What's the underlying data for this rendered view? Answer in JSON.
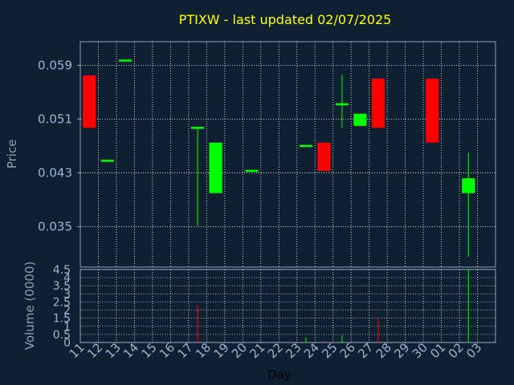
{
  "colors": {
    "background": "#0f2032",
    "title": "#ffff00",
    "axis_text": "#8aa0c0",
    "tick_text": "#9bb4d8",
    "xlabel": "#000000",
    "grid": "#ffffff",
    "frame": "#8aa0c0",
    "up": "#00ff00",
    "down": "#ff0000"
  },
  "chart_data": [
    {
      "type": "candlestick",
      "title": "PTIXW - last updated 02/07/2025",
      "ylabel": "Price",
      "ylim": [
        0.029,
        0.0625
      ],
      "yticks": [
        "0.059",
        "0.051",
        "0.043",
        "0.035"
      ],
      "ytick_values": [
        0.059,
        0.051,
        0.043,
        0.035
      ],
      "grid": true,
      "up_color": "#00ff00",
      "down_color": "#ff0000",
      "categories": [
        "11",
        "12",
        "13",
        "14",
        "15",
        "16",
        "17",
        "18",
        "19",
        "20",
        "21",
        "22",
        "23",
        "24",
        "25",
        "26",
        "27",
        "28",
        "29",
        "30",
        "01",
        "02",
        "03"
      ],
      "candles": [
        {
          "day": "11",
          "open": 0.0575,
          "high": 0.0575,
          "low": 0.0497,
          "close": 0.0497
        },
        {
          "day": "12",
          "open": 0.0448,
          "high": 0.0448,
          "low": 0.0448,
          "close": 0.0448
        },
        {
          "day": "13",
          "open": 0.0597,
          "high": 0.0597,
          "low": 0.0597,
          "close": 0.0597
        },
        {
          "day": "17",
          "open": 0.0497,
          "high": 0.0497,
          "low": 0.0352,
          "close": 0.0497
        },
        {
          "day": "18",
          "open": 0.04,
          "high": 0.0475,
          "low": 0.04,
          "close": 0.0475
        },
        {
          "day": "20",
          "open": 0.0433,
          "high": 0.0433,
          "low": 0.0433,
          "close": 0.0433
        },
        {
          "day": "23",
          "open": 0.047,
          "high": 0.047,
          "low": 0.047,
          "close": 0.047
        },
        {
          "day": "24",
          "open": 0.0475,
          "high": 0.0475,
          "low": 0.0433,
          "close": 0.0433
        },
        {
          "day": "25",
          "open": 0.0532,
          "high": 0.0576,
          "low": 0.0497,
          "close": 0.0532
        },
        {
          "day": "26",
          "open": 0.05,
          "high": 0.0518,
          "low": 0.05,
          "close": 0.0518
        },
        {
          "day": "27",
          "open": 0.057,
          "high": 0.057,
          "low": 0.0497,
          "close": 0.0497
        },
        {
          "day": "30",
          "open": 0.057,
          "high": 0.057,
          "low": 0.0475,
          "close": 0.0475
        },
        {
          "day": "02",
          "open": 0.04,
          "high": 0.046,
          "low": 0.0305,
          "close": 0.0422
        }
      ]
    },
    {
      "type": "bar",
      "ylabel": "Volume (0000)",
      "xlabel": "Day",
      "ylim": [
        0,
        4.5
      ],
      "yticks": [
        "4.5",
        "4",
        "3.5",
        "3",
        "2.5",
        "2",
        "1.5",
        "1",
        "0.5",
        "0"
      ],
      "ytick_values": [
        4.5,
        4,
        3.5,
        3,
        2.5,
        2,
        1.5,
        1,
        0.5,
        0
      ],
      "grid": true,
      "categories": [
        "11",
        "12",
        "13",
        "14",
        "15",
        "16",
        "17",
        "18",
        "19",
        "20",
        "21",
        "22",
        "23",
        "24",
        "25",
        "26",
        "27",
        "28",
        "29",
        "30",
        "01",
        "02",
        "03"
      ],
      "bars": [
        {
          "day": "17",
          "value": 2.3,
          "color": "#ff0000"
        },
        {
          "day": "23",
          "value": 0.3,
          "color": "#00ff00"
        },
        {
          "day": "24",
          "value": 0.1,
          "color": "#ff0000"
        },
        {
          "day": "25",
          "value": 0.45,
          "color": "#00ff00"
        },
        {
          "day": "27",
          "value": 1.5,
          "color": "#ff0000"
        },
        {
          "day": "02",
          "value": 4.5,
          "color": "#00ff00"
        }
      ]
    }
  ]
}
